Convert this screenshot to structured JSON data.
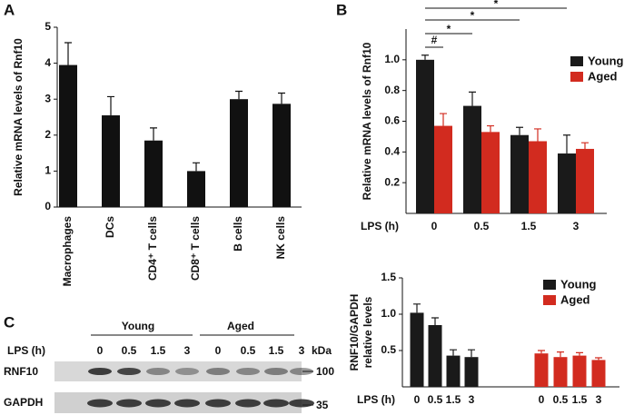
{
  "chart_data": [
    {
      "type": "bar",
      "panel": "A",
      "ylabel": "Relative mRNA levels of Rnf10",
      "categories": [
        "Macrophages",
        "DCs",
        "CD4⁺ T cells",
        "CD8⁺ T cells",
        "B cells",
        "NK cells"
      ],
      "values": [
        3.95,
        2.55,
        1.85,
        1.0,
        3.0,
        2.87
      ],
      "errors": [
        0.62,
        0.52,
        0.35,
        0.23,
        0.22,
        0.3
      ],
      "color": "#111111",
      "ylim": [
        0,
        5
      ],
      "yticks": [
        0,
        1,
        2,
        3,
        4,
        5
      ]
    },
    {
      "type": "bar",
      "panel": "B",
      "ylabel": "Relative mRNA levels of Rnf10",
      "xlabel": "LPS (h)",
      "categories": [
        "0",
        "0.5",
        "1.5",
        "3"
      ],
      "series": [
        {
          "name": "Young",
          "color": "#1a1a1a",
          "values": [
            1.0,
            0.7,
            0.51,
            0.39
          ],
          "errors": [
            0.03,
            0.09,
            0.05,
            0.12
          ]
        },
        {
          "name": "Aged",
          "color": "#d22b1f",
          "values": [
            0.57,
            0.53,
            0.47,
            0.42
          ],
          "errors": [
            0.08,
            0.04,
            0.08,
            0.04
          ]
        }
      ],
      "ylim": [
        0,
        1.2
      ],
      "yticks": [
        0.2,
        0.4,
        0.6,
        0.8,
        {
          "value": 1,
          "label": "1.0"
        }
      ],
      "annotations": [
        "#",
        "*",
        "*",
        "*"
      ],
      "legend": "upper right"
    },
    {
      "type": "bar",
      "ylabel": [
        "RNF10/GAPDH",
        "relative levels"
      ],
      "xlabel": "LPS (h)",
      "categories": [
        "0",
        "0.5",
        "1.5",
        "3",
        "0",
        "0.5",
        "1.5",
        "3"
      ],
      "series": [
        {
          "name": "Young",
          "color": "#1a1a1a",
          "values": [
            1.02,
            0.85,
            0.43,
            0.41,
            null,
            null,
            null,
            null
          ],
          "errors": [
            0.12,
            0.1,
            0.08,
            0.1,
            null,
            null,
            null,
            null
          ]
        },
        {
          "name": "Aged",
          "color": "#d22b1f",
          "values": [
            null,
            null,
            null,
            null,
            0.46,
            0.41,
            0.43,
            0.37
          ],
          "errors": [
            null,
            null,
            null,
            null,
            0.04,
            0.07,
            0.04,
            0.03
          ]
        }
      ],
      "ylim": [
        0,
        1.5
      ],
      "yticks": [
        {
          "value": 0.5,
          "label": "0.5"
        },
        {
          "value": 1,
          "label": "1.0"
        },
        {
          "value": 1.5,
          "label": "1.5"
        }
      ],
      "legend": "upper right"
    }
  ],
  "blot": {
    "panel": "C",
    "groups": [
      "Young",
      "Aged"
    ],
    "xlabel": "LPS (h)",
    "lanes": [
      "0",
      "0.5",
      "1.5",
      "3",
      "0",
      "0.5",
      "1.5",
      "3"
    ],
    "unit": "kDa",
    "rows": [
      {
        "name": "RNF10",
        "marker": "100"
      },
      {
        "name": "GAPDH",
        "marker": "35"
      }
    ]
  }
}
